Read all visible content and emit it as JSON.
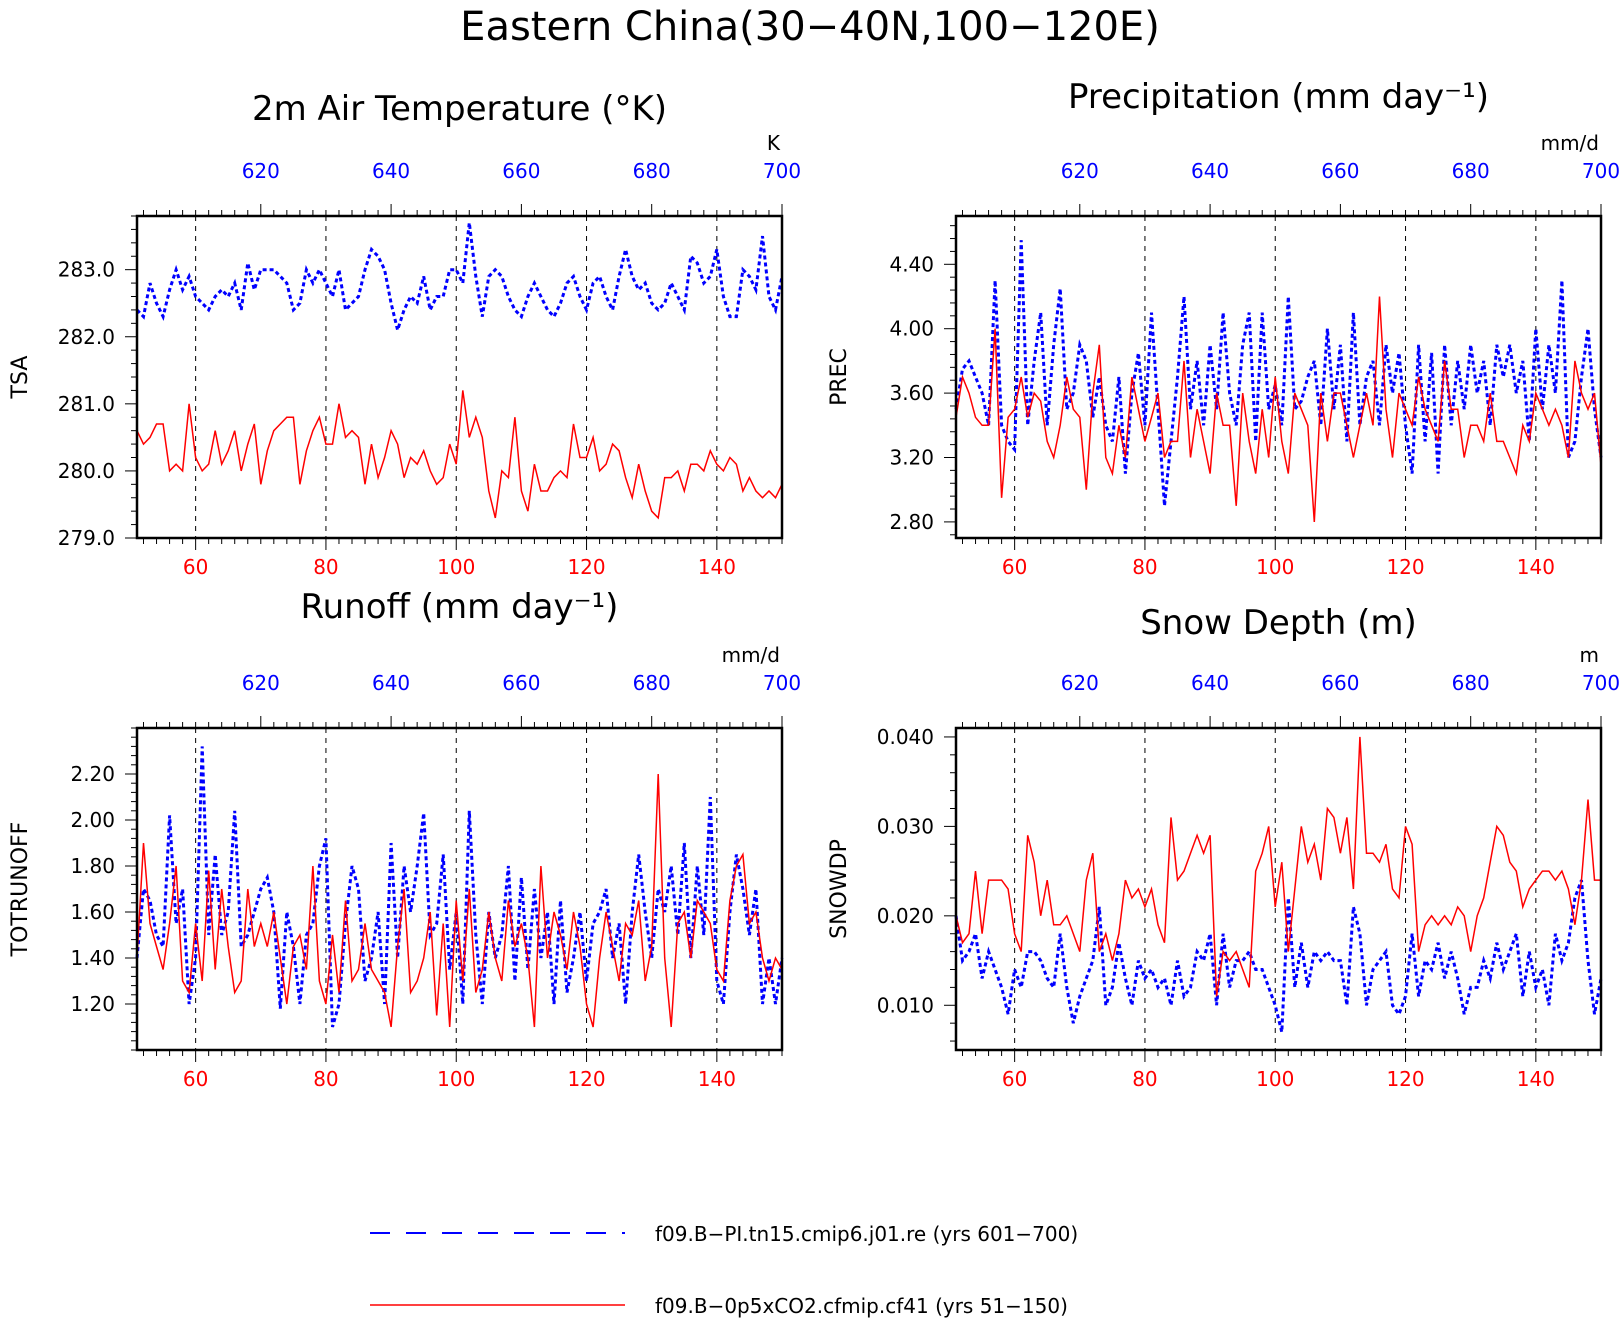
{
  "figure": {
    "title": "Eastern China(30−40N,100−120E)",
    "colors": {
      "case1": "#0000ff",
      "case2": "#ff0000",
      "axis": "#000000"
    }
  },
  "legend": {
    "entries": [
      {
        "label": "f09.B−PI.tn15.cmip6.j01.re (yrs 601−700)",
        "color": "#0000ff",
        "style": "dashed"
      },
      {
        "label": "f09.B−0p5xCO2.cfmip.cf41 (yrs 51−150)",
        "color": "#ff0000",
        "style": "solid"
      }
    ]
  },
  "chart_data": [
    {
      "type": "line",
      "title": "2m Air Temperature (°K)",
      "ylabel": "TSA",
      "unit": "K",
      "ylim": [
        279.0,
        283.8
      ],
      "yticks": [
        279.0,
        280.0,
        281.0,
        282.0,
        283.0
      ],
      "ytick_labels": [
        "279.0",
        "280.0",
        "281.0",
        "282.0",
        "283.0"
      ],
      "xlim_bottom": [
        51,
        150
      ],
      "xlim_top": [
        601,
        700
      ],
      "xticks_bottom": [
        60,
        80,
        100,
        120,
        140
      ],
      "xticks_top": [
        620,
        640,
        660,
        680,
        700
      ],
      "series": [
        {
          "name": "f09.B−PI.tn15.cmip6.j01.re",
          "axis": "top",
          "style": "dashed",
          "color": "#0000ff",
          "x_start": 601,
          "values": [
            282.4,
            282.3,
            282.8,
            282.5,
            282.3,
            282.7,
            283.0,
            282.7,
            282.9,
            282.6,
            282.5,
            282.4,
            282.6,
            282.7,
            282.6,
            282.8,
            282.4,
            283.1,
            282.7,
            283.0,
            283.0,
            283.0,
            282.9,
            282.8,
            282.4,
            282.5,
            283.0,
            282.8,
            283.0,
            282.8,
            282.6,
            283.0,
            282.4,
            282.5,
            282.6,
            283.0,
            283.3,
            283.2,
            283.0,
            282.5,
            282.1,
            282.4,
            282.6,
            282.5,
            282.9,
            282.4,
            282.6,
            282.6,
            283.0,
            283.0,
            282.8,
            283.7,
            282.9,
            282.3,
            282.9,
            283.0,
            282.9,
            282.6,
            282.4,
            282.3,
            282.6,
            282.8,
            282.6,
            282.4,
            282.3,
            282.5,
            282.8,
            282.9,
            282.6,
            282.4,
            282.8,
            282.9,
            282.6,
            282.4,
            282.9,
            283.3,
            282.9,
            282.7,
            282.8,
            282.5,
            282.4,
            282.5,
            282.8,
            282.6,
            282.4,
            283.2,
            283.1,
            282.8,
            282.9,
            283.3,
            282.6,
            282.3,
            282.3,
            283.0,
            282.9,
            282.7,
            283.5,
            282.6,
            282.4,
            282.9
          ]
        },
        {
          "name": "f09.B−0p5xCO2.cfmip.cf41",
          "axis": "bottom",
          "style": "solid",
          "color": "#ff0000",
          "x_start": 51,
          "values": [
            280.6,
            280.4,
            280.5,
            280.7,
            280.7,
            280.0,
            280.1,
            280.0,
            281.0,
            280.2,
            280.0,
            280.1,
            280.6,
            280.1,
            280.3,
            280.6,
            280.0,
            280.4,
            280.7,
            279.8,
            280.3,
            280.6,
            280.7,
            280.8,
            280.8,
            279.8,
            280.3,
            280.6,
            280.8,
            280.4,
            280.4,
            281.0,
            280.5,
            280.6,
            280.5,
            279.8,
            280.4,
            279.9,
            280.2,
            280.6,
            280.4,
            279.9,
            280.2,
            280.1,
            280.3,
            280.0,
            279.8,
            279.9,
            280.4,
            280.1,
            281.2,
            280.5,
            280.8,
            280.5,
            279.7,
            279.3,
            280.0,
            279.9,
            280.8,
            279.7,
            279.4,
            280.1,
            279.7,
            279.7,
            279.9,
            280.0,
            279.9,
            280.7,
            280.2,
            280.2,
            280.5,
            280.0,
            280.1,
            280.4,
            280.3,
            279.9,
            279.6,
            280.1,
            279.7,
            279.4,
            279.3,
            279.9,
            279.9,
            280.0,
            279.7,
            280.1,
            280.1,
            280.0,
            280.3,
            280.1,
            280.0,
            280.2,
            280.1,
            279.7,
            279.9,
            279.7,
            279.6,
            279.7,
            279.6,
            279.8
          ]
        }
      ]
    },
    {
      "type": "line",
      "title": "Precipitation (mm day⁻¹)",
      "ylabel": "PREC",
      "unit": "mm/d",
      "ylim": [
        2.7,
        4.7
      ],
      "yticks": [
        2.8,
        3.2,
        3.6,
        4.0,
        4.4
      ],
      "ytick_labels": [
        "2.80",
        "3.20",
        "3.60",
        "4.00",
        "4.40"
      ],
      "xlim_bottom": [
        51,
        150
      ],
      "xlim_top": [
        601,
        700
      ],
      "xticks_bottom": [
        60,
        80,
        100,
        120,
        140
      ],
      "xticks_top": [
        620,
        640,
        660,
        680,
        700
      ],
      "series": [
        {
          "name": "f09.B−PI.tn15.cmip6.j01.re",
          "axis": "top",
          "style": "dashed",
          "color": "#0000ff",
          "x_start": 601,
          "values": [
            3.5,
            3.75,
            3.8,
            3.7,
            3.6,
            3.4,
            4.3,
            3.4,
            3.3,
            3.25,
            4.55,
            3.4,
            3.8,
            4.1,
            3.4,
            3.9,
            4.25,
            3.5,
            3.6,
            3.9,
            3.8,
            3.45,
            3.7,
            3.4,
            3.3,
            3.7,
            3.1,
            3.6,
            3.85,
            3.4,
            4.1,
            3.5,
            2.9,
            3.3,
            3.7,
            4.2,
            3.5,
            3.8,
            3.4,
            3.9,
            3.5,
            4.1,
            3.6,
            3.4,
            3.9,
            4.1,
            3.3,
            4.1,
            3.5,
            3.65,
            3.4,
            4.2,
            3.5,
            3.55,
            3.7,
            3.8,
            3.4,
            4.0,
            3.5,
            3.9,
            3.3,
            4.1,
            3.4,
            3.7,
            3.8,
            3.4,
            3.9,
            3.6,
            3.85,
            3.4,
            3.1,
            3.9,
            3.3,
            3.85,
            3.1,
            3.9,
            3.4,
            3.8,
            3.5,
            3.9,
            3.6,
            3.8,
            3.4,
            3.9,
            3.7,
            3.9,
            3.6,
            3.8,
            3.3,
            4.0,
            3.5,
            3.9,
            3.6,
            4.3,
            3.2,
            3.3,
            3.7,
            4.0,
            3.5,
            3.2
          ]
        },
        {
          "name": "f09.B−0p5xCO2.cfmip.cf41",
          "axis": "bottom",
          "style": "solid",
          "color": "#ff0000",
          "x_start": 51,
          "values": [
            3.45,
            3.7,
            3.6,
            3.45,
            3.4,
            3.4,
            4.0,
            2.95,
            3.45,
            3.5,
            3.7,
            3.45,
            3.6,
            3.55,
            3.3,
            3.2,
            3.4,
            3.7,
            3.5,
            3.45,
            3.0,
            3.6,
            3.9,
            3.2,
            3.1,
            3.4,
            3.2,
            3.7,
            3.5,
            3.3,
            3.45,
            3.6,
            3.2,
            3.3,
            3.3,
            3.8,
            3.2,
            3.5,
            3.3,
            3.1,
            3.6,
            3.4,
            3.4,
            2.9,
            3.6,
            3.3,
            3.1,
            3.5,
            3.2,
            3.7,
            3.3,
            3.1,
            3.6,
            3.5,
            3.4,
            2.8,
            3.6,
            3.3,
            3.6,
            3.6,
            3.4,
            3.2,
            3.4,
            3.6,
            3.4,
            4.2,
            3.5,
            3.2,
            3.6,
            3.5,
            3.4,
            3.7,
            3.5,
            3.4,
            3.3,
            3.8,
            3.5,
            3.5,
            3.2,
            3.4,
            3.4,
            3.3,
            3.6,
            3.3,
            3.3,
            3.2,
            3.1,
            3.4,
            3.3,
            3.6,
            3.5,
            3.4,
            3.5,
            3.4,
            3.2,
            3.8,
            3.6,
            3.5,
            3.6,
            3.15
          ]
        }
      ]
    },
    {
      "type": "line",
      "title": "Runoff (mm day⁻¹)",
      "ylabel": "TOTRUNOFF",
      "unit": "mm/d",
      "ylim": [
        1.0,
        2.4
      ],
      "yticks": [
        1.2,
        1.4,
        1.6,
        1.8,
        2.0,
        2.2
      ],
      "ytick_labels": [
        "1.20",
        "1.40",
        "1.60",
        "1.80",
        "2.00",
        "2.20"
      ],
      "xlim_bottom": [
        51,
        150
      ],
      "xlim_top": [
        601,
        700
      ],
      "xticks_bottom": [
        60,
        80,
        100,
        120,
        140
      ],
      "xticks_top": [
        620,
        640,
        660,
        680,
        700
      ],
      "series": [
        {
          "name": "f09.B−PI.tn15.cmip6.j01.re",
          "axis": "top",
          "style": "dashed",
          "color": "#0000ff",
          "x_start": 601,
          "values": [
            1.4,
            1.7,
            1.65,
            1.5,
            1.45,
            2.02,
            1.55,
            1.7,
            1.2,
            1.4,
            2.32,
            1.5,
            1.85,
            1.5,
            1.6,
            2.04,
            1.45,
            1.5,
            1.6,
            1.7,
            1.75,
            1.6,
            1.18,
            1.6,
            1.45,
            1.2,
            1.5,
            1.55,
            1.8,
            1.92,
            1.1,
            1.2,
            1.55,
            1.8,
            1.7,
            1.3,
            1.4,
            1.6,
            1.2,
            1.9,
            1.4,
            1.8,
            1.6,
            1.8,
            2.03,
            1.5,
            1.55,
            1.85,
            1.35,
            1.6,
            1.2,
            2.04,
            1.5,
            1.2,
            1.6,
            1.4,
            1.5,
            1.8,
            1.3,
            1.75,
            1.35,
            1.7,
            1.4,
            1.6,
            1.2,
            1.65,
            1.25,
            1.4,
            1.6,
            1.3,
            1.55,
            1.6,
            1.7,
            1.4,
            1.55,
            1.2,
            1.6,
            1.85,
            1.6,
            1.4,
            1.7,
            1.6,
            1.8,
            1.5,
            1.9,
            1.4,
            1.8,
            1.5,
            2.1,
            1.3,
            1.2,
            1.6,
            1.85,
            1.7,
            1.5,
            1.7,
            1.2,
            1.4,
            1.2,
            1.4
          ]
        },
        {
          "name": "f09.B−0p5xCO2.cfmip.cf41",
          "axis": "bottom",
          "style": "solid",
          "color": "#ff0000",
          "x_start": 51,
          "values": [
            1.4,
            1.9,
            1.55,
            1.45,
            1.35,
            1.55,
            1.8,
            1.3,
            1.25,
            1.55,
            1.3,
            1.78,
            1.35,
            1.7,
            1.45,
            1.25,
            1.3,
            1.7,
            1.45,
            1.55,
            1.45,
            1.6,
            1.4,
            1.2,
            1.45,
            1.5,
            1.35,
            1.8,
            1.3,
            1.2,
            1.5,
            1.25,
            1.65,
            1.3,
            1.35,
            1.55,
            1.35,
            1.3,
            1.25,
            1.1,
            1.45,
            1.7,
            1.25,
            1.3,
            1.4,
            1.6,
            1.15,
            1.55,
            1.1,
            1.65,
            1.3,
            1.7,
            1.25,
            1.35,
            1.6,
            1.4,
            1.3,
            1.65,
            1.45,
            1.55,
            1.4,
            1.1,
            1.8,
            1.4,
            1.6,
            1.5,
            1.35,
            1.6,
            1.45,
            1.2,
            1.1,
            1.4,
            1.6,
            1.45,
            1.3,
            1.55,
            1.5,
            1.65,
            1.3,
            1.45,
            2.2,
            1.4,
            1.1,
            1.55,
            1.6,
            1.4,
            1.65,
            1.6,
            1.55,
            1.35,
            1.3,
            1.65,
            1.8,
            1.85,
            1.55,
            1.6,
            1.4,
            1.3,
            1.4,
            1.35
          ]
        }
      ]
    },
    {
      "type": "line",
      "title": "Snow Depth (m)",
      "ylabel": "SNOWDP",
      "unit": "m",
      "ylim": [
        0.005,
        0.041
      ],
      "yticks": [
        0.01,
        0.02,
        0.03,
        0.04
      ],
      "ytick_labels": [
        "0.010",
        "0.020",
        "0.030",
        "0.040"
      ],
      "xlim_bottom": [
        51,
        150
      ],
      "xlim_top": [
        601,
        700
      ],
      "xticks_bottom": [
        60,
        80,
        100,
        120,
        140
      ],
      "xticks_top": [
        620,
        640,
        660,
        680,
        700
      ],
      "series": [
        {
          "name": "f09.B−PI.tn15.cmip6.j01.re",
          "axis": "top",
          "style": "dashed",
          "color": "#0000ff",
          "x_start": 601,
          "values": [
            0.02,
            0.015,
            0.016,
            0.018,
            0.013,
            0.016,
            0.014,
            0.012,
            0.009,
            0.014,
            0.012,
            0.016,
            0.016,
            0.015,
            0.013,
            0.012,
            0.018,
            0.012,
            0.008,
            0.011,
            0.013,
            0.015,
            0.021,
            0.01,
            0.012,
            0.017,
            0.013,
            0.01,
            0.015,
            0.013,
            0.014,
            0.012,
            0.013,
            0.01,
            0.015,
            0.011,
            0.012,
            0.016,
            0.015,
            0.018,
            0.01,
            0.018,
            0.012,
            0.015,
            0.015,
            0.016,
            0.014,
            0.014,
            0.012,
            0.01,
            0.007,
            0.022,
            0.012,
            0.017,
            0.012,
            0.016,
            0.015,
            0.016,
            0.015,
            0.015,
            0.01,
            0.021,
            0.018,
            0.01,
            0.014,
            0.015,
            0.016,
            0.01,
            0.009,
            0.011,
            0.018,
            0.011,
            0.015,
            0.014,
            0.017,
            0.013,
            0.016,
            0.013,
            0.009,
            0.012,
            0.012,
            0.015,
            0.013,
            0.017,
            0.014,
            0.016,
            0.018,
            0.011,
            0.016,
            0.012,
            0.014,
            0.01,
            0.018,
            0.015,
            0.017,
            0.022,
            0.024,
            0.015,
            0.009,
            0.013
          ]
        },
        {
          "name": "f09.B−0p5xCO2.cfmip.cf41",
          "axis": "bottom",
          "style": "solid",
          "color": "#ff0000",
          "x_start": 51,
          "values": [
            0.02,
            0.017,
            0.018,
            0.025,
            0.018,
            0.024,
            0.024,
            0.024,
            0.023,
            0.018,
            0.016,
            0.029,
            0.026,
            0.02,
            0.024,
            0.019,
            0.019,
            0.02,
            0.018,
            0.016,
            0.024,
            0.027,
            0.016,
            0.018,
            0.015,
            0.018,
            0.024,
            0.022,
            0.023,
            0.021,
            0.023,
            0.019,
            0.017,
            0.031,
            0.024,
            0.025,
            0.027,
            0.029,
            0.027,
            0.029,
            0.011,
            0.016,
            0.015,
            0.016,
            0.014,
            0.012,
            0.025,
            0.027,
            0.03,
            0.021,
            0.026,
            0.016,
            0.023,
            0.03,
            0.026,
            0.028,
            0.024,
            0.032,
            0.031,
            0.027,
            0.031,
            0.023,
            0.04,
            0.027,
            0.027,
            0.026,
            0.028,
            0.023,
            0.022,
            0.03,
            0.028,
            0.016,
            0.019,
            0.02,
            0.019,
            0.02,
            0.019,
            0.021,
            0.02,
            0.016,
            0.02,
            0.022,
            0.026,
            0.03,
            0.029,
            0.026,
            0.025,
            0.021,
            0.023,
            0.024,
            0.025,
            0.025,
            0.024,
            0.025,
            0.023,
            0.019,
            0.024,
            0.033,
            0.024,
            0.024
          ]
        }
      ]
    }
  ]
}
